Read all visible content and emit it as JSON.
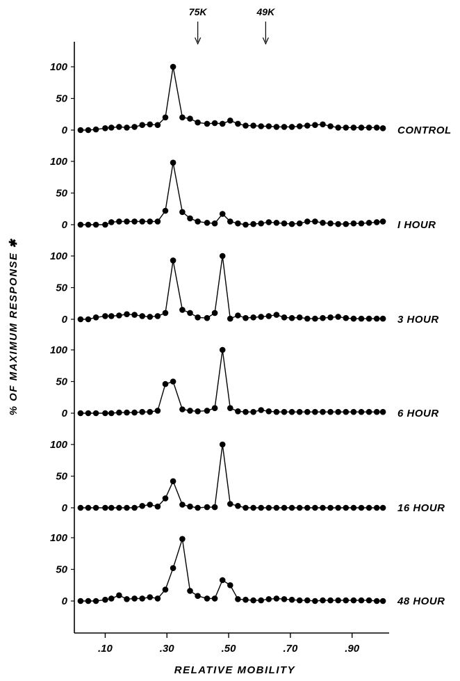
{
  "chart_data": {
    "type": "line",
    "xlabel": "RELATIVE MOBILITY",
    "ylabel": "% OF MAXIMUM RESPONSE ✱",
    "x_ticks": [
      ".10",
      ".30",
      ".50",
      ".70",
      ".90"
    ],
    "x_tick_values": [
      0.1,
      0.3,
      0.5,
      0.7,
      0.9
    ],
    "xlim": [
      0.0,
      1.02
    ],
    "ylim": [
      0,
      100
    ],
    "y_ticks": [
      "0",
      "50",
      "100"
    ],
    "markers": [
      {
        "label": "75K",
        "x": 0.4
      },
      {
        "label": "49K",
        "x": 0.62
      }
    ],
    "x": [
      0.02,
      0.045,
      0.07,
      0.1,
      0.12,
      0.145,
      0.17,
      0.195,
      0.22,
      0.245,
      0.27,
      0.295,
      0.32,
      0.35,
      0.375,
      0.4,
      0.43,
      0.455,
      0.48,
      0.505,
      0.53,
      0.555,
      0.58,
      0.605,
      0.63,
      0.655,
      0.68,
      0.705,
      0.73,
      0.755,
      0.78,
      0.805,
      0.83,
      0.855,
      0.88,
      0.905,
      0.93,
      0.955,
      0.98,
      1.0
    ],
    "series": [
      {
        "name": "CONTROL",
        "values": [
          0,
          0,
          1,
          3,
          4,
          5,
          4,
          5,
          8,
          9,
          8,
          20,
          100,
          20,
          18,
          12,
          10,
          11,
          10,
          15,
          10,
          7,
          7,
          6,
          6,
          5,
          5,
          5,
          6,
          7,
          8,
          9,
          6,
          4,
          4,
          4,
          4,
          4,
          4,
          3
        ]
      },
      {
        "name": "I HOUR",
        "values": [
          0,
          0,
          0,
          0,
          4,
          5,
          5,
          5,
          5,
          5,
          5,
          22,
          98,
          20,
          10,
          5,
          3,
          2,
          17,
          5,
          2,
          0,
          1,
          2,
          4,
          3,
          2,
          1,
          2,
          5,
          5,
          3,
          2,
          1,
          1,
          2,
          2,
          3,
          4,
          5
        ]
      },
      {
        "name": "3 HOUR",
        "values": [
          0,
          0,
          3,
          5,
          5,
          6,
          8,
          7,
          5,
          4,
          5,
          10,
          93,
          15,
          10,
          3,
          2,
          10,
          100,
          1,
          6,
          2,
          3,
          4,
          5,
          7,
          3,
          2,
          3,
          1,
          1,
          2,
          3,
          4,
          2,
          1,
          1,
          1,
          1,
          1
        ]
      },
      {
        "name": "6 HOUR",
        "values": [
          0,
          0,
          0,
          0,
          0,
          1,
          1,
          1,
          2,
          2,
          4,
          46,
          50,
          6,
          4,
          3,
          4,
          8,
          100,
          8,
          3,
          2,
          2,
          5,
          3,
          2,
          2,
          2,
          2,
          2,
          2,
          2,
          2,
          2,
          2,
          2,
          2,
          2,
          2,
          2
        ]
      },
      {
        "name": "16 HOUR",
        "values": [
          0,
          0,
          0,
          0,
          0,
          0,
          0,
          0,
          3,
          5,
          2,
          15,
          42,
          5,
          2,
          0,
          1,
          1,
          100,
          6,
          3,
          0,
          0,
          0,
          0,
          0,
          0,
          0,
          0,
          0,
          0,
          0,
          0,
          0,
          0,
          0,
          0,
          0,
          0,
          0
        ]
      },
      {
        "name": "48 HOUR",
        "values": [
          0,
          0,
          0,
          2,
          4,
          9,
          3,
          4,
          4,
          6,
          4,
          18,
          52,
          98,
          16,
          8,
          4,
          4,
          33,
          25,
          3,
          2,
          1,
          1,
          3,
          4,
          3,
          2,
          1,
          1,
          0,
          1,
          1,
          1,
          1,
          1,
          1,
          1,
          0,
          0
        ]
      }
    ]
  }
}
